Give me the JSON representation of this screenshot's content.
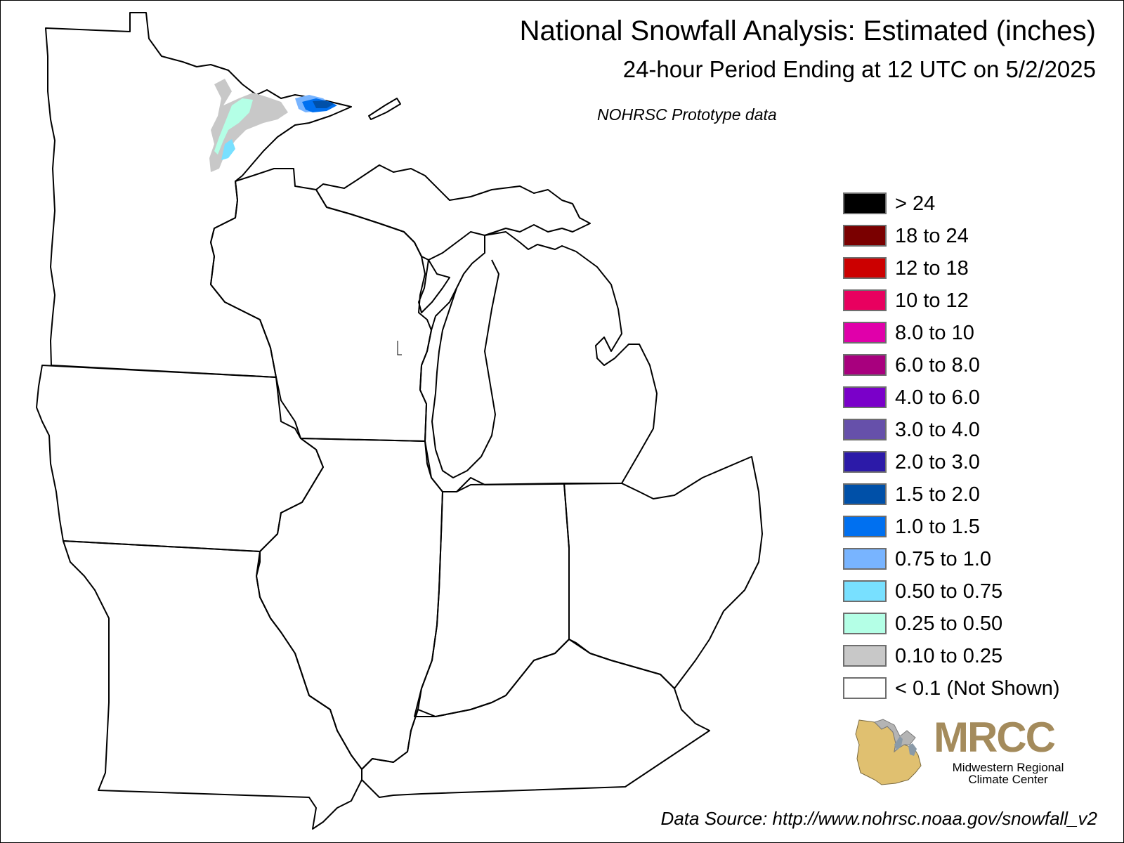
{
  "header": {
    "title": "National Snowfall Analysis: Estimated (inches)",
    "subtitle": "24-hour Period Ending at 12 UTC on 5/2/2025",
    "note": "NOHRSC Prototype data"
  },
  "legend": {
    "items": [
      {
        "label": "> 24",
        "color": "#000000"
      },
      {
        "label": "18 to 24",
        "color": "#7a0000"
      },
      {
        "label": "12 to 18",
        "color": "#cc0000"
      },
      {
        "label": "10 to 12",
        "color": "#e8005f"
      },
      {
        "label": "8.0 to 10",
        "color": "#e000aa"
      },
      {
        "label": "6.0 to 8.0",
        "color": "#a8007e"
      },
      {
        "label": "4.0 to 6.0",
        "color": "#7a00c9"
      },
      {
        "label": "3.0 to 4.0",
        "color": "#6650aa"
      },
      {
        "label": "2.0 to 3.0",
        "color": "#2c1aa8"
      },
      {
        "label": "1.5 to 2.0",
        "color": "#0050a8"
      },
      {
        "label": "1.0 to 1.5",
        "color": "#0070f0"
      },
      {
        "label": "0.75 to 1.0",
        "color": "#78b4ff"
      },
      {
        "label": "0.50 to 0.75",
        "color": "#78e0ff"
      },
      {
        "label": "0.25 to 0.50",
        "color": "#b4ffe6"
      },
      {
        "label": "0.10 to 0.25",
        "color": "#c8c8c8"
      },
      {
        "label": "< 0.1 (Not Shown)",
        "color": "#ffffff"
      }
    ]
  },
  "logo": {
    "text": "MRCC",
    "subtitle_line1": "Midwestern Regional",
    "subtitle_line2": "Climate Center",
    "color": "#a48b5c"
  },
  "footer": {
    "source": "Data Source: http://www.nohrsc.noaa.gov/snowfall_v2"
  }
}
